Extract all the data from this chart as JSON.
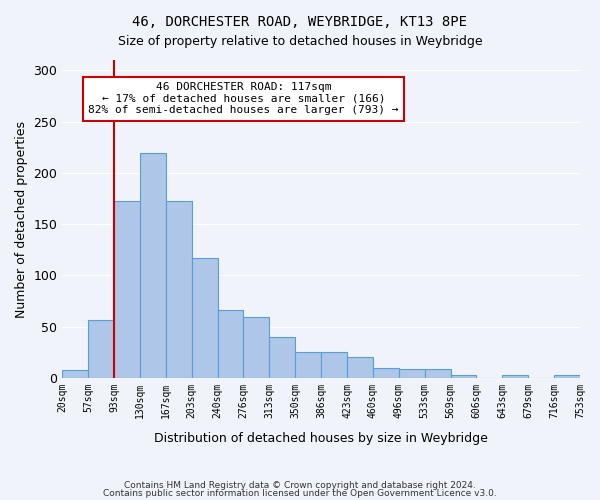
{
  "title1": "46, DORCHESTER ROAD, WEYBRIDGE, KT13 8PE",
  "title2": "Size of property relative to detached houses in Weybridge",
  "xlabel": "Distribution of detached houses by size in Weybridge",
  "ylabel": "Number of detached properties",
  "bar_values": [
    8,
    57,
    173,
    219,
    173,
    117,
    66,
    59,
    40,
    25,
    25,
    20,
    10,
    9,
    9,
    3,
    0,
    3,
    0,
    3
  ],
  "bin_labels": [
    "20sqm",
    "57sqm",
    "93sqm",
    "130sqm",
    "167sqm",
    "203sqm",
    "240sqm",
    "276sqm",
    "313sqm",
    "350sqm",
    "386sqm",
    "423sqm",
    "460sqm",
    "496sqm",
    "533sqm",
    "569sqm",
    "606sqm",
    "643sqm",
    "679sqm",
    "716sqm",
    "753sqm"
  ],
  "bar_color": "#aec6e8",
  "bar_edge_color": "#5a9fd4",
  "vline_x": 2.0,
  "vline_color": "#cc0000",
  "property_size": "117sqm",
  "annotation_text": "46 DORCHESTER ROAD: 117sqm\n← 17% of detached houses are smaller (166)\n82% of semi-detached houses are larger (793) →",
  "annotation_box_color": "white",
  "annotation_box_edge_color": "#cc0000",
  "ylim": [
    0,
    310
  ],
  "yticks": [
    0,
    50,
    100,
    150,
    200,
    250,
    300
  ],
  "footer1": "Contains HM Land Registry data © Crown copyright and database right 2024.",
  "footer2": "Contains public sector information licensed under the Open Government Licence v3.0.",
  "bg_color": "#f0f4fa"
}
